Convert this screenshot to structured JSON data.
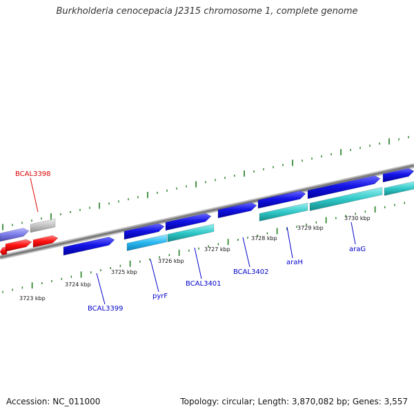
{
  "title": "Burkholderia cenocepacia J2315 chromosome 1, complete genome",
  "footer": {
    "accession": "Accession: NC_011000",
    "summary": "Topology: circular; Length: 3,870,082 bp; Genes: 3,557"
  },
  "colors": {
    "backbone": "#8c8c8c",
    "tick": "#1a7a1a",
    "forward_gene": "#1010e0",
    "rrna_gene": "#30c8c8",
    "cyan_gene": "#28b8f0",
    "reverse_gene": "#ff1010",
    "label_blue": "#0000cc",
    "label_red": "#dd0000"
  },
  "scale": {
    "labels": [
      "3723 kbp",
      "3724 kbp",
      "3725 kbp",
      "3726 kbp",
      "3727 kbp",
      "3728 kbp",
      "3729 kbp",
      "3730 kbp"
    ]
  },
  "gene_labels": [
    {
      "text": "BCAL3398",
      "color": "red"
    },
    {
      "text": "BCAL3399",
      "color": "blue"
    },
    {
      "text": "pyrF",
      "color": "blue"
    },
    {
      "text": "BCAL3401",
      "color": "blue"
    },
    {
      "text": "BCAL3402",
      "color": "blue"
    },
    {
      "text": "araH",
      "color": "blue"
    },
    {
      "text": "araG",
      "color": "blue"
    }
  ]
}
